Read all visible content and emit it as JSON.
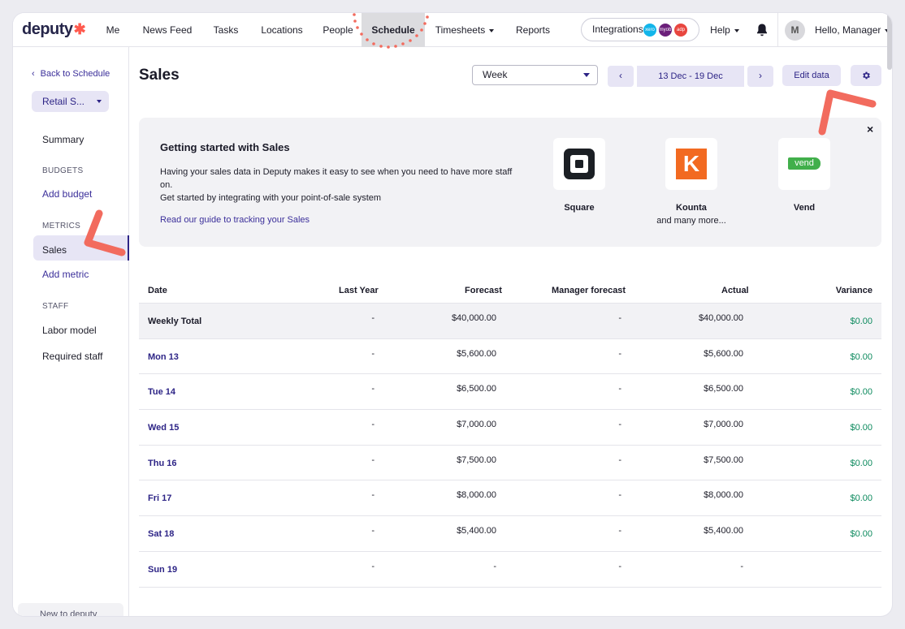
{
  "brand": {
    "name": "deputy",
    "mark": "✱"
  },
  "nav": {
    "items": [
      {
        "label": "Me"
      },
      {
        "label": "News Feed"
      },
      {
        "label": "Tasks"
      },
      {
        "label": "Locations"
      },
      {
        "label": "People"
      },
      {
        "label": "Schedule",
        "active": true
      },
      {
        "label": "Timesheets"
      },
      {
        "label": "Reports"
      }
    ],
    "integrations_label": "Integrations",
    "integration_badges": [
      "xero",
      "myob",
      "adp"
    ],
    "help_label": "Help",
    "avatar_initial": "M",
    "user_label": "Hello, Manager"
  },
  "sidebar": {
    "back_label": "Back to Schedule",
    "location_label": "Retail S...",
    "summary_label": "Summary",
    "budgets_heading": "BUDGETS",
    "add_budget_label": "Add budget",
    "metrics_heading": "METRICS",
    "sales_label": "Sales",
    "add_metric_label": "Add metric",
    "staff_heading": "STAFF",
    "labor_model_label": "Labor model",
    "required_staff_label": "Required staff",
    "bottom_label": "New to deputy"
  },
  "header": {
    "title": "Sales",
    "period_select": "Week",
    "prev_label": "‹",
    "next_label": "›",
    "date_range": "13 Dec - 19 Dec",
    "edit_label": "Edit data"
  },
  "card": {
    "title": "Getting started with Sales",
    "desc_line1": "Having your sales data in Deputy makes it easy to see when you need to have more staff on.",
    "desc_line2": "Get started by integrating with your point-of-sale system",
    "guide_link": "Read our guide to tracking your Sales",
    "close_label": "×",
    "integrations": [
      {
        "name": "Square",
        "sub": ""
      },
      {
        "name": "Kounta",
        "sub": "and many more..."
      },
      {
        "name": "Vend",
        "sub": ""
      }
    ],
    "vend_logo_text": "vend",
    "kounta_logo_text": "K"
  },
  "table": {
    "headers": [
      "Date",
      "Last Year",
      "Forecast",
      "Manager forecast",
      "Actual",
      "Variance"
    ],
    "rows": [
      {
        "date": "Weekly Total",
        "last_year": "-",
        "forecast": "$40,000.00",
        "manager": "-",
        "actual": "$40,000.00",
        "variance": "$0.00"
      },
      {
        "date": "Mon 13",
        "last_year": "-",
        "forecast": "$5,600.00",
        "manager": "-",
        "actual": "$5,600.00",
        "variance": "$0.00"
      },
      {
        "date": "Tue 14",
        "last_year": "-",
        "forecast": "$6,500.00",
        "manager": "-",
        "actual": "$6,500.00",
        "variance": "$0.00"
      },
      {
        "date": "Wed 15",
        "last_year": "-",
        "forecast": "$7,000.00",
        "manager": "-",
        "actual": "$7,000.00",
        "variance": "$0.00"
      },
      {
        "date": "Thu 16",
        "last_year": "-",
        "forecast": "$7,500.00",
        "manager": "-",
        "actual": "$7,500.00",
        "variance": "$0.00"
      },
      {
        "date": "Fri 17",
        "last_year": "-",
        "forecast": "$8,000.00",
        "manager": "-",
        "actual": "$8,000.00",
        "variance": "$0.00"
      },
      {
        "date": "Sat 18",
        "last_year": "-",
        "forecast": "$5,400.00",
        "manager": "-",
        "actual": "$5,400.00",
        "variance": "$0.00"
      },
      {
        "date": "Sun 19",
        "last_year": "-",
        "forecast": "-",
        "manager": "-",
        "actual": "-",
        "variance": ""
      }
    ]
  },
  "colors": {
    "accent": "#2d2486",
    "accent_light": "#e7e5f5",
    "annotation": "#f26b5e",
    "positive": "#0d8a5e"
  }
}
